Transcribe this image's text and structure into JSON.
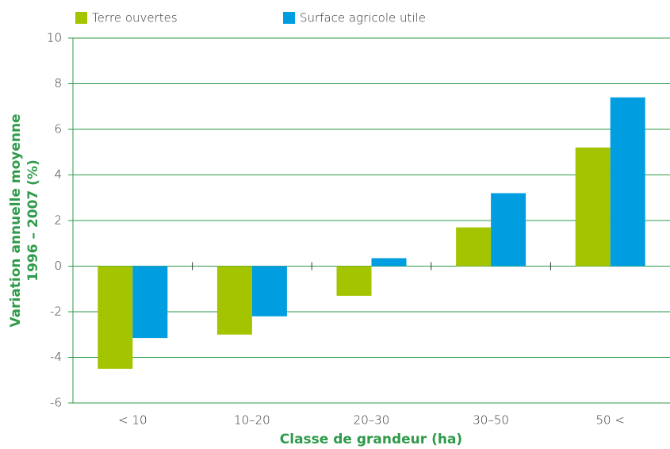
{
  "chart_data": {
    "type": "bar",
    "categories": [
      "< 10",
      "10–20",
      "20–30",
      "30–50",
      "50 <"
    ],
    "series": [
      {
        "name": "Terre ouvertes",
        "color": "#a5c400",
        "values": [
          -4.5,
          -3.0,
          -1.3,
          1.7,
          5.2
        ]
      },
      {
        "name": "Surface agricole utile",
        "color": "#009ee0",
        "values": [
          -3.15,
          -2.2,
          0.35,
          3.2,
          7.4
        ]
      }
    ],
    "xlabel": "Classe de grandeur (ha)",
    "ylabel": [
      "Variation annuelle moyenne",
      "1996 – 2007 (%)"
    ],
    "ylim": [
      -6,
      10
    ],
    "yticks": [
      -6,
      -4,
      -2,
      0,
      2,
      4,
      6,
      8,
      10
    ],
    "grid": true,
    "grid_color": "#2e9a4a",
    "legend": "top"
  }
}
